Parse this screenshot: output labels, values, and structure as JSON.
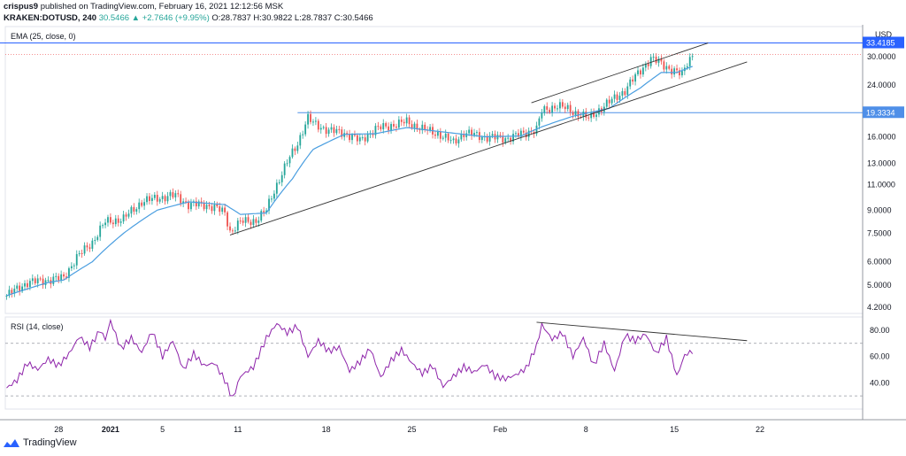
{
  "header": {
    "user": "crispus9",
    "published": "published on TradingView.com, February 16, 2021 12:12:56 MSK",
    "symbol": "KRAKEN:DOTUSD, 240",
    "last": "30.5466",
    "change": "▲ +2.7646 (+9.95%)",
    "ohlc": "O:28.7837 H:30.9822 L:28.7837 C:30.5466"
  },
  "footer": {
    "brand": "TradingView"
  },
  "colors": {
    "up": "#26a69a",
    "down": "#ef5350",
    "ema": "#4a9ee0",
    "rsi": "#8e24aa",
    "level": "#2962ff",
    "trend": "#333333"
  },
  "chart_data": [
    {
      "type": "candlestick",
      "indicator_label": "EMA (25, close, 0)",
      "price_scale": "log",
      "ylim": [
        4.0,
        38.0
      ],
      "y_ticks": [
        "4.2000",
        "5.0000",
        "6.0000",
        "7.5000",
        "9.0000",
        "11.0000",
        "13.0000",
        "16.0000",
        "24.0000",
        "30.0000"
      ],
      "y_unit": "USD",
      "x_ticks": [
        "28",
        "2021",
        "5",
        "11",
        "18",
        "25",
        "Feb",
        "8",
        "15",
        "22"
      ],
      "levels": [
        {
          "label": "33.4185",
          "value": 33.4185
        },
        {
          "label": "19.3334",
          "value": 19.3334
        }
      ],
      "last_price_line": 30.5466,
      "close_anchors": [
        [
          0,
          4.6
        ],
        [
          8,
          5.1
        ],
        [
          16,
          5.2
        ],
        [
          22,
          5.3
        ],
        [
          27,
          6.2
        ],
        [
          33,
          7.0
        ],
        [
          38,
          8.2
        ],
        [
          45,
          8.4
        ],
        [
          52,
          9.6
        ],
        [
          58,
          9.9
        ],
        [
          65,
          10.1
        ],
        [
          70,
          9.4
        ],
        [
          76,
          9.4
        ],
        [
          80,
          9.2
        ],
        [
          84,
          8.8
        ],
        [
          86,
          7.6
        ],
        [
          90,
          8.2
        ],
        [
          96,
          8.3
        ],
        [
          100,
          9.0
        ],
        [
          106,
          12.0
        ],
        [
          112,
          15.2
        ],
        [
          116,
          18.5
        ],
        [
          118,
          17.8
        ],
        [
          124,
          16.8
        ],
        [
          130,
          16.5
        ],
        [
          136,
          15.5
        ],
        [
          142,
          17.0
        ],
        [
          148,
          17.5
        ],
        [
          154,
          18.0
        ],
        [
          160,
          17.0
        ],
        [
          166,
          16.4
        ],
        [
          172,
          15.3
        ],
        [
          176,
          16.5
        ],
        [
          184,
          16.0
        ],
        [
          192,
          15.8
        ],
        [
          198,
          16.3
        ],
        [
          204,
          17.0
        ],
        [
          206,
          19.5
        ],
        [
          212,
          20.5
        ],
        [
          218,
          19.5
        ],
        [
          224,
          18.5
        ],
        [
          232,
          21.0
        ],
        [
          238,
          23.0
        ],
        [
          244,
          27.0
        ],
        [
          248,
          29.5
        ],
        [
          252,
          28.5
        ],
        [
          256,
          27.0
        ],
        [
          260,
          26.0
        ],
        [
          262,
          28.8
        ],
        [
          264,
          30.5
        ]
      ],
      "ema_anchors": [
        [
          0,
          4.6
        ],
        [
          16,
          5.1
        ],
        [
          22,
          5.2
        ],
        [
          33,
          6.0
        ],
        [
          45,
          7.5
        ],
        [
          58,
          9.0
        ],
        [
          70,
          9.6
        ],
        [
          84,
          9.4
        ],
        [
          90,
          8.7
        ],
        [
          100,
          8.8
        ],
        [
          110,
          11.5
        ],
        [
          118,
          14.5
        ],
        [
          130,
          16.3
        ],
        [
          142,
          16.4
        ],
        [
          154,
          17.2
        ],
        [
          166,
          16.7
        ],
        [
          184,
          16.0
        ],
        [
          198,
          16.1
        ],
        [
          206,
          17.3
        ],
        [
          218,
          18.8
        ],
        [
          232,
          20.0
        ],
        [
          244,
          23.5
        ],
        [
          252,
          26.5
        ],
        [
          258,
          26.5
        ],
        [
          264,
          27.8
        ]
      ],
      "channel": {
        "lower": [
          [
            86,
            7.4
          ],
          [
            285,
            28.8
          ]
        ],
        "upper": [
          [
            202,
            20.9
          ],
          [
            270,
            33.4
          ]
        ],
        "range_line": [
          [
            112,
            19.3334
          ],
          [
            320,
            19.3334
          ]
        ]
      }
    },
    {
      "type": "line",
      "title": "RSI (14, close)",
      "ylim": [
        20,
        90
      ],
      "y_ticks": [
        "40.00",
        "60.00",
        "80.00"
      ],
      "bands": [
        70,
        30
      ],
      "rsi_anchors": [
        [
          0,
          36
        ],
        [
          4,
          42
        ],
        [
          8,
          55
        ],
        [
          12,
          50
        ],
        [
          16,
          58
        ],
        [
          20,
          53
        ],
        [
          24,
          62
        ],
        [
          28,
          75
        ],
        [
          32,
          67
        ],
        [
          36,
          80
        ],
        [
          38,
          73
        ],
        [
          40,
          87
        ],
        [
          44,
          66
        ],
        [
          48,
          74
        ],
        [
          52,
          63
        ],
        [
          56,
          79
        ],
        [
          60,
          60
        ],
        [
          64,
          72
        ],
        [
          68,
          50
        ],
        [
          72,
          62
        ],
        [
          76,
          53
        ],
        [
          80,
          55
        ],
        [
          84,
          42
        ],
        [
          87,
          28
        ],
        [
          90,
          45
        ],
        [
          95,
          52
        ],
        [
          100,
          74
        ],
        [
          104,
          85
        ],
        [
          108,
          78
        ],
        [
          112,
          83
        ],
        [
          116,
          60
        ],
        [
          120,
          72
        ],
        [
          124,
          64
        ],
        [
          128,
          67
        ],
        [
          132,
          49
        ],
        [
          136,
          56
        ],
        [
          140,
          66
        ],
        [
          144,
          44
        ],
        [
          148,
          57
        ],
        [
          152,
          65
        ],
        [
          156,
          55
        ],
        [
          160,
          47
        ],
        [
          164,
          53
        ],
        [
          168,
          37
        ],
        [
          172,
          45
        ],
        [
          176,
          52
        ],
        [
          180,
          48
        ],
        [
          184,
          54
        ],
        [
          188,
          45
        ],
        [
          192,
          43
        ],
        [
          196,
          46
        ],
        [
          200,
          51
        ],
        [
          204,
          68
        ],
        [
          206,
          84
        ],
        [
          210,
          73
        ],
        [
          214,
          78
        ],
        [
          218,
          60
        ],
        [
          222,
          74
        ],
        [
          226,
          53
        ],
        [
          230,
          70
        ],
        [
          234,
          49
        ],
        [
          238,
          76
        ],
        [
          242,
          72
        ],
        [
          246,
          77
        ],
        [
          250,
          62
        ],
        [
          254,
          74
        ],
        [
          258,
          45
        ],
        [
          261,
          61
        ],
        [
          264,
          64
        ]
      ],
      "divergence_line": [
        [
          204,
          86
        ],
        [
          285,
          72
        ]
      ],
      "x_ticks": [
        "28",
        "2021",
        "5",
        "11",
        "18",
        "25",
        "Feb",
        "8",
        "15",
        "22"
      ]
    }
  ]
}
